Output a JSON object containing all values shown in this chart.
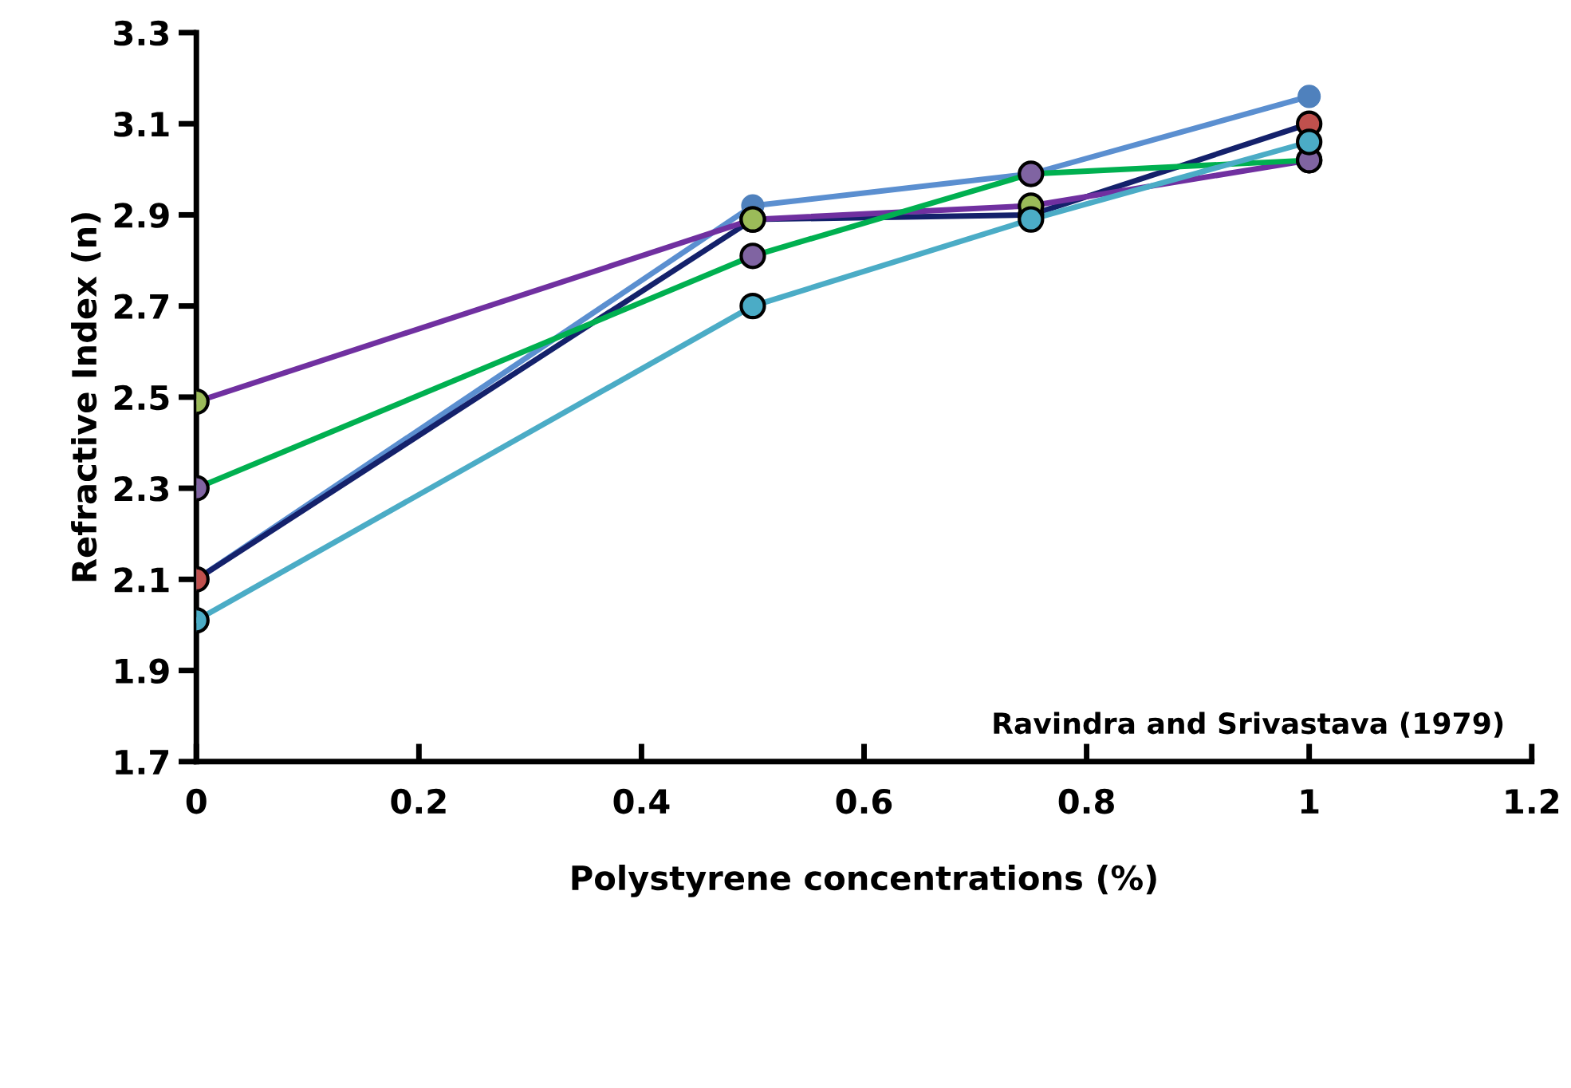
{
  "chart_data": {
    "type": "line",
    "xlabel": "Polystyrene concentrations (%)",
    "ylabel": "Refractive Index (n)",
    "x": [
      0,
      0.5,
      0.75,
      1
    ],
    "series": [
      {
        "color": "#5b8fd0",
        "colors": [
          "#4f81bd",
          "#4f81bd",
          "#4f81bd",
          "#4f81bd"
        ],
        "values": [
          2.1,
          2.92,
          2.99,
          3.16
        ]
      },
      {
        "color": "#14216b",
        "colors": [
          "#c0504d",
          "#c0504d",
          "#c0504d",
          "#c0504d"
        ],
        "values": [
          2.1,
          2.89,
          2.9,
          3.1
        ]
      },
      {
        "color": "#7030a0",
        "colors": [
          "#9bbb59",
          "#9bbb59",
          "#9bbb59",
          "#9bbb59"
        ],
        "values": [
          2.49,
          2.89,
          2.92,
          3.02
        ]
      },
      {
        "color": "#00b050",
        "colors": [
          "#8064a2",
          "#8064a2",
          "#8064a2",
          "#8064a2"
        ],
        "values": [
          2.3,
          2.81,
          2.99,
          3.02
        ]
      },
      {
        "color": "#4bacc6",
        "colors": [
          "#4bacc6",
          "#4bacc6",
          "#4bacc6",
          "#4bacc6"
        ],
        "values": [
          2.01,
          2.7,
          2.89,
          3.06
        ]
      }
    ],
    "annotations": [
      "Ravindra and Srivastava (1979)"
    ],
    "xlim": [
      0,
      1.2
    ],
    "xticks": [
      0,
      0.2,
      0.4,
      0.6,
      0.8,
      1,
      1.2
    ],
    "ylim": [
      1.7,
      3.3
    ],
    "yticks": [
      1.7,
      1.9,
      2.1,
      2.3,
      2.5,
      2.7,
      2.9,
      3.1,
      3.3
    ],
    "marker": "circle",
    "line_style": "solid",
    "grid": false
  }
}
